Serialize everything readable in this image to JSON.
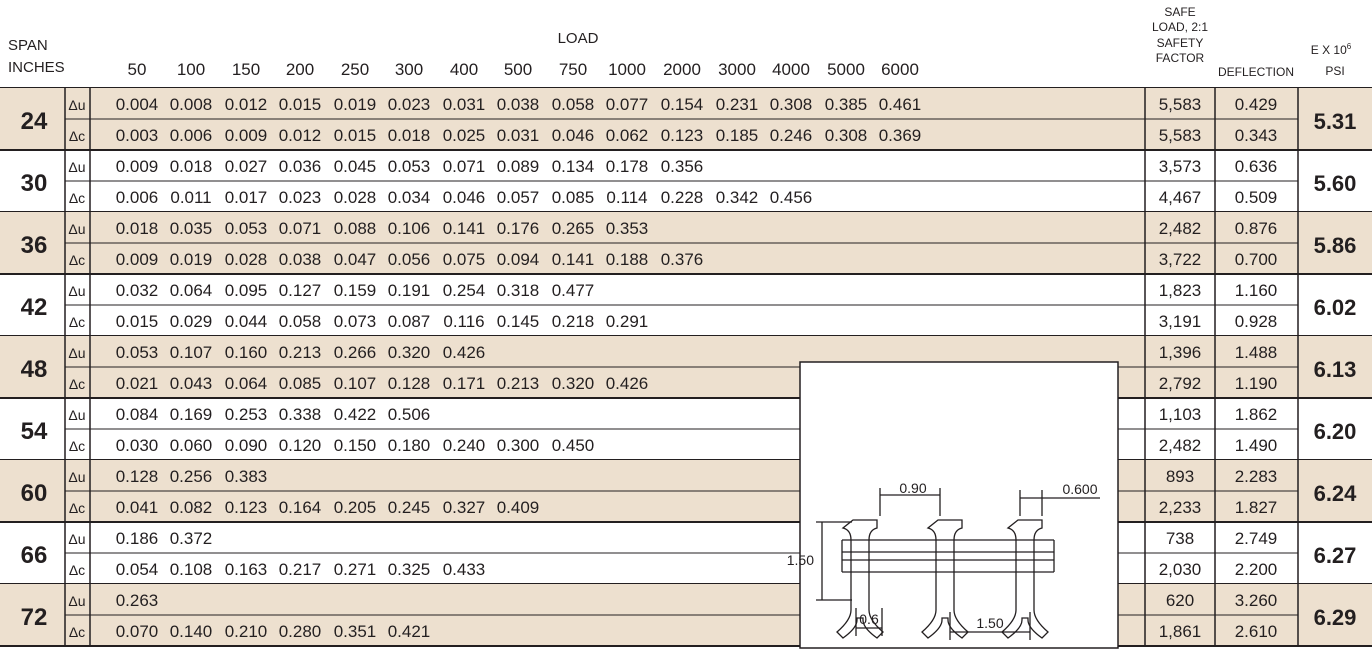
{
  "headers": {
    "span": [
      "SPAN",
      "INCHES"
    ],
    "load": "LOAD",
    "loads": [
      "50",
      "100",
      "150",
      "200",
      "250",
      "300",
      "400",
      "500",
      "750",
      "1000",
      "2000",
      "3000",
      "4000",
      "5000",
      "6000"
    ],
    "safe_load": [
      "SAFE",
      "LOAD, 2:1",
      "SAFETY",
      "FACTOR"
    ],
    "deflection": "DEFLECTION",
    "e_base": "E X 10",
    "e_exp": "6",
    "e_unit": "PSI"
  },
  "colors": {
    "band": "#ede0cf",
    "rule": "#231f20",
    "text": "#231f20"
  },
  "rows": [
    {
      "span": "24",
      "e": "5.31",
      "shaded": true,
      "u": {
        "sym": "Δu",
        "vals": [
          "0.004",
          "0.008",
          "0.012",
          "0.015",
          "0.019",
          "0.023",
          "0.031",
          "0.038",
          "0.058",
          "0.077",
          "0.154",
          "0.231",
          "0.308",
          "0.385",
          "0.461"
        ],
        "safe": "5,583",
        "defl": "0.429"
      },
      "c": {
        "sym": "Δc",
        "vals": [
          "0.003",
          "0.006",
          "0.009",
          "0.012",
          "0.015",
          "0.018",
          "0.025",
          "0.031",
          "0.046",
          "0.062",
          "0.123",
          "0.185",
          "0.246",
          "0.308",
          "0.369"
        ],
        "safe": "5,583",
        "defl": "0.343"
      }
    },
    {
      "span": "30",
      "e": "5.60",
      "shaded": false,
      "u": {
        "sym": "Δu",
        "vals": [
          "0.009",
          "0.018",
          "0.027",
          "0.036",
          "0.045",
          "0.053",
          "0.071",
          "0.089",
          "0.134",
          "0.178",
          "0.356"
        ],
        "safe": "3,573",
        "defl": "0.636"
      },
      "c": {
        "sym": "Δc",
        "vals": [
          "0.006",
          "0.011",
          "0.017",
          "0.023",
          "0.028",
          "0.034",
          "0.046",
          "0.057",
          "0.085",
          "0.114",
          "0.228",
          "0.342",
          "0.456"
        ],
        "safe": "4,467",
        "defl": "0.509"
      }
    },
    {
      "span": "36",
      "e": "5.86",
      "shaded": true,
      "u": {
        "sym": "Δu",
        "vals": [
          "0.018",
          "0.035",
          "0.053",
          "0.071",
          "0.088",
          "0.106",
          "0.141",
          "0.176",
          "0.265",
          "0.353"
        ],
        "safe": "2,482",
        "defl": "0.876"
      },
      "c": {
        "sym": "Δc",
        "vals": [
          "0.009",
          "0.019",
          "0.028",
          "0.038",
          "0.047",
          "0.056",
          "0.075",
          "0.094",
          "0.141",
          "0.188",
          "0.376"
        ],
        "safe": "3,722",
        "defl": "0.700"
      }
    },
    {
      "span": "42",
      "e": "6.02",
      "shaded": false,
      "u": {
        "sym": "Δu",
        "vals": [
          "0.032",
          "0.064",
          "0.095",
          "0.127",
          "0.159",
          "0.191",
          "0.254",
          "0.318",
          "0.477"
        ],
        "safe": "1,823",
        "defl": "1.160"
      },
      "c": {
        "sym": "Δc",
        "vals": [
          "0.015",
          "0.029",
          "0.044",
          "0.058",
          "0.073",
          "0.087",
          "0.116",
          "0.145",
          "0.218",
          "0.291"
        ],
        "safe": "3,191",
        "defl": "0.928"
      }
    },
    {
      "span": "48",
      "e": "6.13",
      "shaded": true,
      "u": {
        "sym": "Δu",
        "vals": [
          "0.053",
          "0.107",
          "0.160",
          "0.213",
          "0.266",
          "0.320",
          "0.426"
        ],
        "safe": "1,396",
        "defl": "1.488"
      },
      "c": {
        "sym": "Δc",
        "vals": [
          "0.021",
          "0.043",
          "0.064",
          "0.085",
          "0.107",
          "0.128",
          "0.171",
          "0.213",
          "0.320",
          "0.426"
        ],
        "safe": "2,792",
        "defl": "1.190"
      }
    },
    {
      "span": "54",
      "e": "6.20",
      "shaded": false,
      "u": {
        "sym": "Δu",
        "vals": [
          "0.084",
          "0.169",
          "0.253",
          "0.338",
          "0.422",
          "0.506"
        ],
        "safe": "1,103",
        "defl": "1.862"
      },
      "c": {
        "sym": "Δc",
        "vals": [
          "0.030",
          "0.060",
          "0.090",
          "0.120",
          "0.150",
          "0.180",
          "0.240",
          "0.300",
          "0.450"
        ],
        "safe": "2,482",
        "defl": "1.490"
      }
    },
    {
      "span": "60",
      "e": "6.24",
      "shaded": true,
      "u": {
        "sym": "Δu",
        "vals": [
          "0.128",
          "0.256",
          "0.383"
        ],
        "safe": "893",
        "defl": "2.283"
      },
      "c": {
        "sym": "Δc",
        "vals": [
          "0.041",
          "0.082",
          "0.123",
          "0.164",
          "0.205",
          "0.245",
          "0.327",
          "0.409"
        ],
        "safe": "2,233",
        "defl": "1.827"
      }
    },
    {
      "span": "66",
      "e": "6.27",
      "shaded": false,
      "u": {
        "sym": "Δu",
        "vals": [
          "0.186",
          "0.372"
        ],
        "safe": "738",
        "defl": "2.749"
      },
      "c": {
        "sym": "Δc",
        "vals": [
          "0.054",
          "0.108",
          "0.163",
          "0.217",
          "0.271",
          "0.325",
          "0.433"
        ],
        "safe": "2,030",
        "defl": "2.200"
      }
    },
    {
      "span": "72",
      "e": "6.29",
      "shaded": true,
      "u": {
        "sym": "Δu",
        "vals": [
          "0.263"
        ],
        "safe": "620",
        "defl": "3.260"
      },
      "c": {
        "sym": "Δc",
        "vals": [
          "0.070",
          "0.140",
          "0.210",
          "0.280",
          "0.351",
          "0.421"
        ],
        "safe": "1,861",
        "defl": "2.610"
      }
    }
  ],
  "diagram": {
    "dims": [
      "0.90",
      "0.600",
      "1.50",
      "0.6",
      "1.50"
    ]
  }
}
